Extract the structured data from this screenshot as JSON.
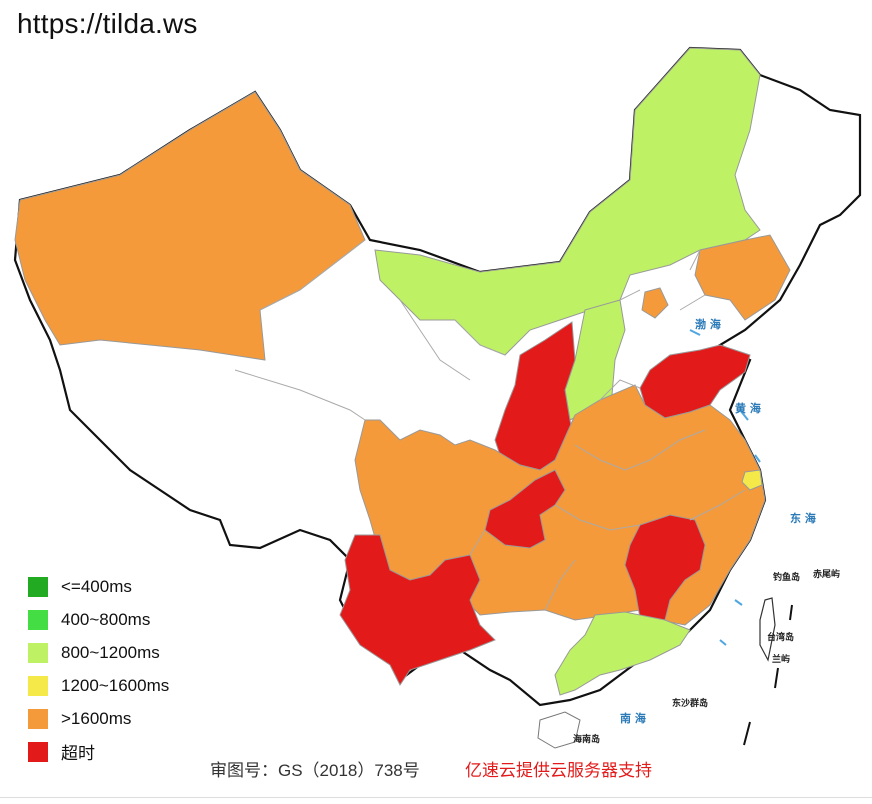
{
  "header": {
    "url": "https://tilda.ws"
  },
  "legend": [
    {
      "label": "<=400ms",
      "color": "#22aa22"
    },
    {
      "label": "400~800ms",
      "color": "#44dd44"
    },
    {
      "label": "800~1200ms",
      "color": "#bef264"
    },
    {
      "label": "1200~1600ms",
      "color": "#f5e94a"
    },
    {
      "label": ">1600ms",
      "color": "#f59a3a"
    },
    {
      "label": "超时",
      "color": "#e31a1a"
    }
  ],
  "map_labels": {
    "bohai": "渤 海",
    "yellow_sea": "黄 海",
    "east_sea": "东 海",
    "south_sea": "南 海",
    "diaoyu": "钓鱼岛",
    "chiwei": "赤尾屿",
    "taiwan": "台湾岛",
    "lanyu": "兰屿",
    "dongsha": "东沙群岛",
    "hainan": "海南岛"
  },
  "footer": {
    "approval": "审图号：GS（2018）738号",
    "support": "亿速云提供云服务器支持"
  }
}
